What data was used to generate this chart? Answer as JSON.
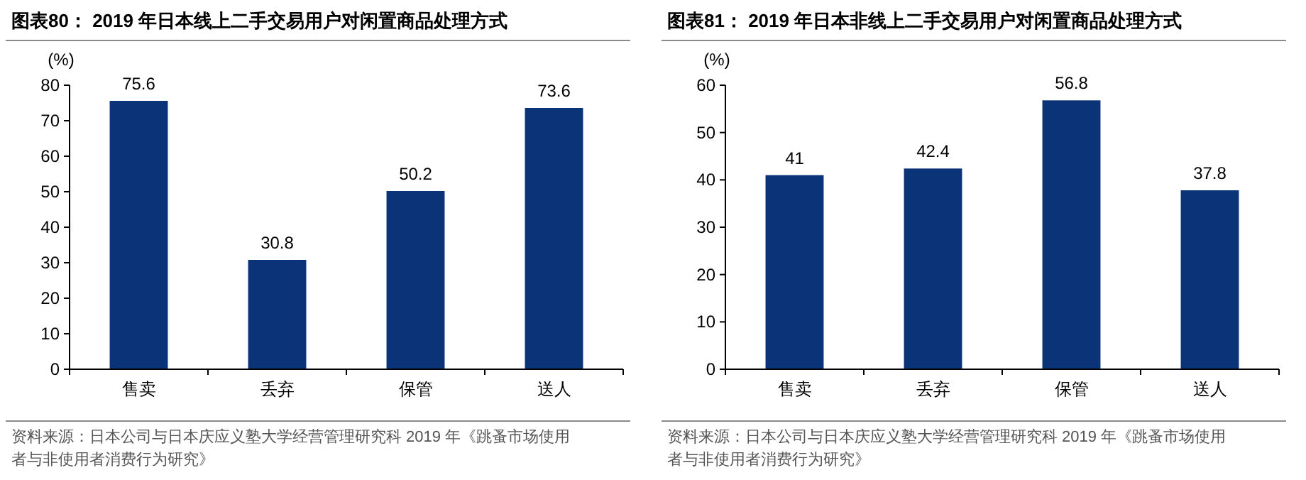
{
  "chart_data": [
    {
      "type": "bar",
      "title": "图表80： 2019 年日本线上二手交易用户对闲置商品处理方式",
      "ylabel": "(%)",
      "categories": [
        "售卖",
        "丢弃",
        "保管",
        "送人"
      ],
      "series": [
        {
          "color": "#0b3478",
          "values": [
            75.6,
            30.8,
            50.2,
            73.6
          ]
        }
      ],
      "ylim": [
        0,
        80
      ],
      "yticks": [
        0,
        10,
        20,
        30,
        40,
        50,
        60,
        70,
        80
      ],
      "grid": false,
      "data_labels": true,
      "annotations": [
        "资料来源：日本公司与日本庆应义塾大学经营管理研究科 2019 年《跳蚤市场使用者与非使用者消费行为研究》"
      ]
    },
    {
      "type": "bar",
      "title": "图表81： 2019 年日本非线上二手交易用户对闲置商品处理方式",
      "ylabel": "(%)",
      "categories": [
        "售卖",
        "丢弃",
        "保管",
        "送人"
      ],
      "series": [
        {
          "color": "#0b3478",
          "values": [
            41,
            42.4,
            56.8,
            37.8
          ]
        }
      ],
      "ylim": [
        0,
        60
      ],
      "yticks": [
        0,
        10,
        20,
        30,
        40,
        50,
        60
      ],
      "grid": false,
      "data_labels": true,
      "annotations": [
        "资料来源：日本公司与日本庆应义塾大学经营管理研究科 2019 年《跳蚤市场使用者与非使用者消费行为研究》"
      ]
    }
  ]
}
